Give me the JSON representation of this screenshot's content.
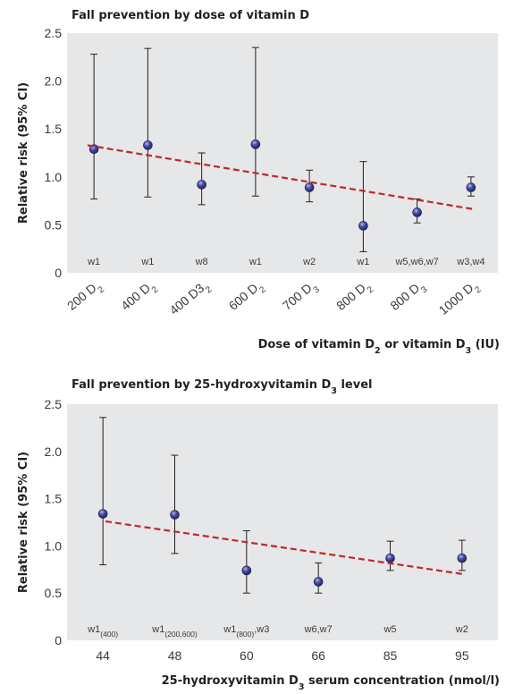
{
  "chart_data": [
    {
      "type": "scatter",
      "title": "Fall prevention by dose of vitamin D",
      "ylabel": "Relative risk (95% CI)",
      "xlabel": {
        "parts": [
          {
            "text": "Dose of vitamin D",
            "sub": false
          },
          {
            "text": "2",
            "sub": true
          },
          {
            "text": " or vitamin D",
            "sub": false
          },
          {
            "text": "3",
            "sub": true
          },
          {
            "text": " (IU)",
            "sub": false
          }
        ]
      },
      "ylim": [
        0,
        2.5
      ],
      "yticks": [
        "0",
        "0.5",
        "1.0",
        "1.5",
        "2.0",
        "2.5"
      ],
      "grid": false,
      "categories": [
        {
          "base": "200 D",
          "sub": "2"
        },
        {
          "base": "400 D",
          "sub": "2"
        },
        {
          "base": "400 D3",
          "sub": "2"
        },
        {
          "base": "600 D",
          "sub": "2"
        },
        {
          "base": "700 D",
          "sub": "3"
        },
        {
          "base": "800 D",
          "sub": "2"
        },
        {
          "base": "800 D",
          "sub": "3"
        },
        {
          "base": "1000 D",
          "sub": "2"
        }
      ],
      "points": [
        {
          "y": 1.29,
          "lo": 0.77,
          "hi": 2.28,
          "note": [
            {
              "t": "w1"
            }
          ]
        },
        {
          "y": 1.33,
          "lo": 0.79,
          "hi": 2.34,
          "note": [
            {
              "t": "w1"
            }
          ]
        },
        {
          "y": 0.92,
          "lo": 0.71,
          "hi": 1.25,
          "note": [
            {
              "t": "w8"
            }
          ]
        },
        {
          "y": 1.34,
          "lo": 0.8,
          "hi": 2.35,
          "note": [
            {
              "t": "w1"
            }
          ]
        },
        {
          "y": 0.89,
          "lo": 0.74,
          "hi": 1.07,
          "note": [
            {
              "t": "w2"
            }
          ]
        },
        {
          "y": 0.49,
          "lo": 0.22,
          "hi": 1.16,
          "note": [
            {
              "t": "w1"
            }
          ]
        },
        {
          "y": 0.63,
          "lo": 0.52,
          "hi": 0.77,
          "note": [
            {
              "t": "w5,w6,w7"
            }
          ]
        },
        {
          "y": 0.89,
          "lo": 0.8,
          "hi": 1.0,
          "note": [
            {
              "t": "w3,w4"
            }
          ]
        }
      ],
      "trend": {
        "y_start": 1.33,
        "y_end": 0.66
      },
      "colors": {
        "panel": "#e6e7e8",
        "marker": "#3b3e8c",
        "trend": "#c0272d",
        "errorbar": "#231f20"
      }
    },
    {
      "type": "scatter",
      "title": {
        "parts": [
          {
            "text": "Fall prevention by 25-hydroxyvitamin D",
            "sub": false
          },
          {
            "text": "3",
            "sub": true
          },
          {
            "text": " level",
            "sub": false
          }
        ]
      },
      "ylabel": "Relative risk (95% CI)",
      "xlabel": {
        "parts": [
          {
            "text": "25-hydroxyvitamin D",
            "sub": false
          },
          {
            "text": "3",
            "sub": true
          },
          {
            "text": " serum concentration (nmol/l)",
            "sub": false
          }
        ]
      },
      "ylim": [
        0,
        2.5
      ],
      "yticks": [
        "0",
        "0.5",
        "1.0",
        "1.5",
        "2.0",
        "2.5"
      ],
      "grid": false,
      "categories": [
        "44",
        "48",
        "60",
        "66",
        "85",
        "95"
      ],
      "points": [
        {
          "y": 1.34,
          "lo": 0.8,
          "hi": 2.36,
          "note": [
            {
              "t": "w1"
            },
            {
              "t": "(400)",
              "sub": true
            }
          ]
        },
        {
          "y": 1.33,
          "lo": 0.92,
          "hi": 1.96,
          "note": [
            {
              "t": "w1"
            },
            {
              "t": "(200,600)",
              "sub": true
            }
          ]
        },
        {
          "y": 0.74,
          "lo": 0.5,
          "hi": 1.16,
          "note": [
            {
              "t": "w1"
            },
            {
              "t": "(800)",
              "sub": true
            },
            {
              "t": ",w3"
            }
          ]
        },
        {
          "y": 0.62,
          "lo": 0.5,
          "hi": 0.82,
          "note": [
            {
              "t": "w6,w7"
            }
          ]
        },
        {
          "y": 0.87,
          "lo": 0.74,
          "hi": 1.05,
          "note": [
            {
              "t": "w5"
            }
          ]
        },
        {
          "y": 0.87,
          "lo": 0.74,
          "hi": 1.06,
          "note": [
            {
              "t": "w2"
            }
          ]
        }
      ],
      "trend": {
        "y_start": 1.26,
        "y_end": 0.7
      },
      "colors": {
        "panel": "#e6e7e8",
        "marker": "#3b3e8c",
        "trend": "#c0272d",
        "errorbar": "#231f20"
      }
    }
  ]
}
